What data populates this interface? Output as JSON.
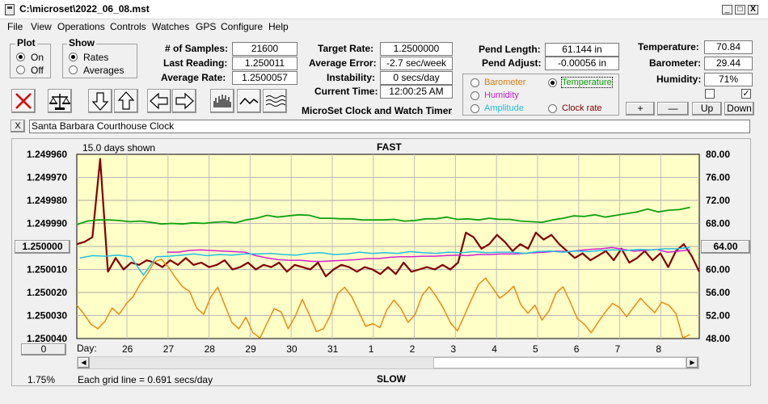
{
  "window": {
    "title": "C:\\microset\\2022_06_08.mst",
    "min": "_",
    "max": "□",
    "close": "X"
  },
  "menu": [
    "File",
    "View",
    "Operations",
    "Controls",
    "Watches",
    "GPS",
    "Configure",
    "Help"
  ],
  "plot_group": {
    "title": "Plot",
    "on": "On",
    "off": "Off",
    "selected": "On"
  },
  "show_group": {
    "title": "Show",
    "rates": "Rates",
    "averages": "Averages",
    "selected": "Rates"
  },
  "stats": {
    "samples_label": "# of Samples:",
    "samples": "21600",
    "last_label": "Last Reading:",
    "last": "1.250011",
    "avg_rate_label": "Average Rate:",
    "avg_rate": "1.2500057"
  },
  "rates": {
    "target_label": "Target Rate:",
    "target": "1.2500000",
    "avg_err_label": "Average Error:",
    "avg_err": "-2.7 sec/week",
    "instab_label": "Instability:",
    "instab": "0 secs/day",
    "time_label": "Current Time:",
    "time": "12:00:25 AM"
  },
  "app_name": "MicroSet Clock and Watch Timer",
  "pendulum": {
    "length_label": "Pend Length:",
    "length": "61.144 in",
    "adjust_label": "Pend Adjust:",
    "adjust": "-0.00056 in"
  },
  "sensor_select": {
    "barometer": "Barometer",
    "temperature": "Temperature",
    "humidity": "Humidity",
    "amplitude": "Amplitude",
    "clock_rate": "Clock rate",
    "selected": "Temperature",
    "colors": {
      "barometer": "#e07a10",
      "temperature": "#10a010",
      "humidity": "#d020d0",
      "amplitude": "#20c0e0",
      "clock_rate": "#800000"
    }
  },
  "environment": {
    "temp_label": "Temperature:",
    "temp": "70.84",
    "baro_label": "Barometer:",
    "baro": "29.44",
    "hum_label": "Humidity:",
    "hum": "71%"
  },
  "scale_buttons": {
    "plus": "+",
    "minus": "—",
    "up": "Up",
    "down": "Down"
  },
  "clock_name": {
    "close": "X",
    "value": "Santa Barbara Courthouse Clock"
  },
  "chart_data": {
    "type": "line",
    "title": "FAST",
    "bottom_title": "SLOW",
    "days_shown": "15.0 days shown",
    "grid_note": "Each grid line = 0.691 secs/day",
    "percent": "1.75%",
    "left_reset": "0",
    "center_left_label": "1.250000",
    "center_right_label": "64.00",
    "x_axis_title": "Day:",
    "x_ticks": [
      "26",
      "27",
      "28",
      "29",
      "30",
      "31",
      "1",
      "2",
      "3",
      "4",
      "5",
      "6",
      "7",
      "8"
    ],
    "left_ticks": [
      "1.249960",
      "1.249970",
      "1.249980",
      "1.249990",
      "1.250000",
      "1.250010",
      "1.250020",
      "1.250030",
      "1.250040"
    ],
    "right_ticks": [
      "80.00",
      "76.00",
      "72.00",
      "68.00",
      "64.00",
      "60.00",
      "56.00",
      "52.00",
      "48.00"
    ],
    "ylim_left": [
      1.24996,
      1.25004
    ],
    "ylim_right": [
      48,
      80
    ],
    "grid": true,
    "series": [
      {
        "color": "#800000",
        "width": 2.2,
        "values": [
          1.249999,
          1.249998,
          1.249996,
          1.249962,
          1.250011,
          1.250005,
          1.25001,
          1.250007,
          1.250008,
          1.250006,
          1.250007,
          1.250009,
          1.250006,
          1.250008,
          1.250005,
          1.250008,
          1.250007,
          1.250009,
          1.250008,
          1.250006,
          1.25001,
          1.250009,
          1.250007,
          1.25001,
          1.250008,
          1.250009,
          1.250007,
          1.250011,
          1.250008,
          1.250009,
          1.25001,
          1.250007,
          1.250013,
          1.25001,
          1.250008,
          1.250009,
          1.250011,
          1.250009,
          1.25001,
          1.250012,
          1.250009,
          1.250012,
          1.250007,
          1.250011,
          1.25001,
          1.250009,
          1.25001,
          1.250008,
          1.25001,
          1.250007,
          1.249994,
          1.249996,
          1.250001,
          1.249999,
          1.249995,
          1.249998,
          1.250002,
          1.249999,
          1.250001,
          1.249994,
          1.249997,
          1.249995,
          1.249999,
          1.250002,
          1.250005,
          1.250003,
          1.250006,
          1.250004,
          1.250002,
          1.250006,
          1.250001,
          1.250007,
          1.250005,
          1.250002,
          1.250006,
          1.250003,
          1.250009,
          1.250002,
          1.249999,
          1.250004,
          1.250011
        ]
      },
      {
        "color": "#10a010",
        "width": 1.8,
        "values": [
          67.8,
          68.4,
          68.6,
          68.6,
          68.5,
          68.3,
          68.4,
          68.2,
          67.9,
          68.0,
          67.9,
          68.1,
          68.0,
          68.2,
          68.3,
          68.1,
          68.6,
          68.9,
          69.4,
          69.1,
          69.3,
          69.5,
          69.4,
          68.9,
          68.9,
          68.8,
          68.8,
          68.6,
          68.6,
          68.6,
          68.7,
          68.4,
          68.5,
          68.8,
          68.8,
          69.1,
          68.7,
          68.8,
          68.6,
          68.9,
          68.7,
          68.7,
          68.4,
          68.3,
          68.2,
          68.6,
          68.9,
          69.3,
          69.2,
          69.5,
          69.1,
          69.4,
          69.7,
          70.0,
          70.5,
          70.0,
          70.3,
          70.4,
          70.8
        ]
      },
      {
        "color": "#d020d0",
        "width": 1.5,
        "values": [
          63.0,
          63.0,
          63.3,
          63.4,
          63.3,
          63.2,
          63.1,
          63.0,
          62.4,
          62.0,
          61.7,
          61.6,
          61.6,
          61.4,
          61.4,
          61.5,
          61.6,
          61.7,
          61.9,
          61.9,
          62.1,
          62.2,
          62.2,
          62.3,
          62.3,
          62.4,
          62.5,
          62.4,
          62.6,
          62.6,
          62.7,
          62.7,
          62.8,
          62.9,
          63.0,
          63.2,
          63.1,
          63.3,
          63.5,
          63.6,
          63.8,
          63.5,
          63.2,
          63.3,
          63.5,
          63.0,
          63.2,
          63.4
        ]
      },
      {
        "color": "#20c0e0",
        "width": 1.5,
        "values": [
          62.0,
          62.4,
          62.3,
          62.5,
          62.2,
          59.0,
          62.2,
          62.3,
          62.5,
          62.7,
          62.4,
          62.6,
          62.5,
          62.7,
          62.7,
          62.8,
          62.6,
          62.5,
          62.8,
          62.9,
          62.6,
          62.7,
          63.0,
          62.8,
          62.9,
          62.8,
          63.1,
          62.9,
          62.8,
          63.0,
          62.9,
          63.1,
          62.9,
          63.0,
          63.0,
          62.8,
          63.1,
          63.2,
          63.0,
          63.2,
          63.1,
          63.3,
          63.4,
          63.3,
          63.5,
          63.4,
          63.6,
          63.6,
          63.8
        ]
      },
      {
        "color": "#f08a10",
        "width": 1.5,
        "values": [
          53.8,
          52.3,
          50.5,
          49.7,
          51.0,
          53.3,
          52.2,
          54.0,
          55.3,
          57.5,
          59.2,
          61.3,
          61.8,
          60.4,
          58.6,
          57.0,
          56.2,
          53.3,
          52.2,
          55.2,
          56.9,
          53.8,
          50.8,
          49.7,
          51.7,
          49.0,
          48.1,
          50.7,
          53.2,
          52.6,
          49.7,
          51.9,
          54.8,
          52.1,
          49.2,
          49.7,
          52.1,
          55.8,
          56.9,
          55.3,
          52.7,
          50.1,
          50.6,
          49.9,
          53.0,
          54.7,
          53.2,
          50.8,
          52.2,
          55.5,
          57.0,
          55.3,
          53.3,
          50.8,
          49.3,
          52.0,
          54.8,
          57.4,
          58.5,
          56.8,
          55.0,
          55.9,
          57.1,
          53.9,
          52.4,
          53.8,
          51.2,
          52.8,
          55.9,
          57.0,
          54.4,
          51.5,
          50.5,
          49.0,
          50.9,
          52.6,
          54.1,
          53.4,
          51.8,
          53.4,
          55.0,
          53.7,
          52.5,
          54.3,
          53.8,
          52.4,
          48.1,
          48.7
        ]
      }
    ]
  }
}
